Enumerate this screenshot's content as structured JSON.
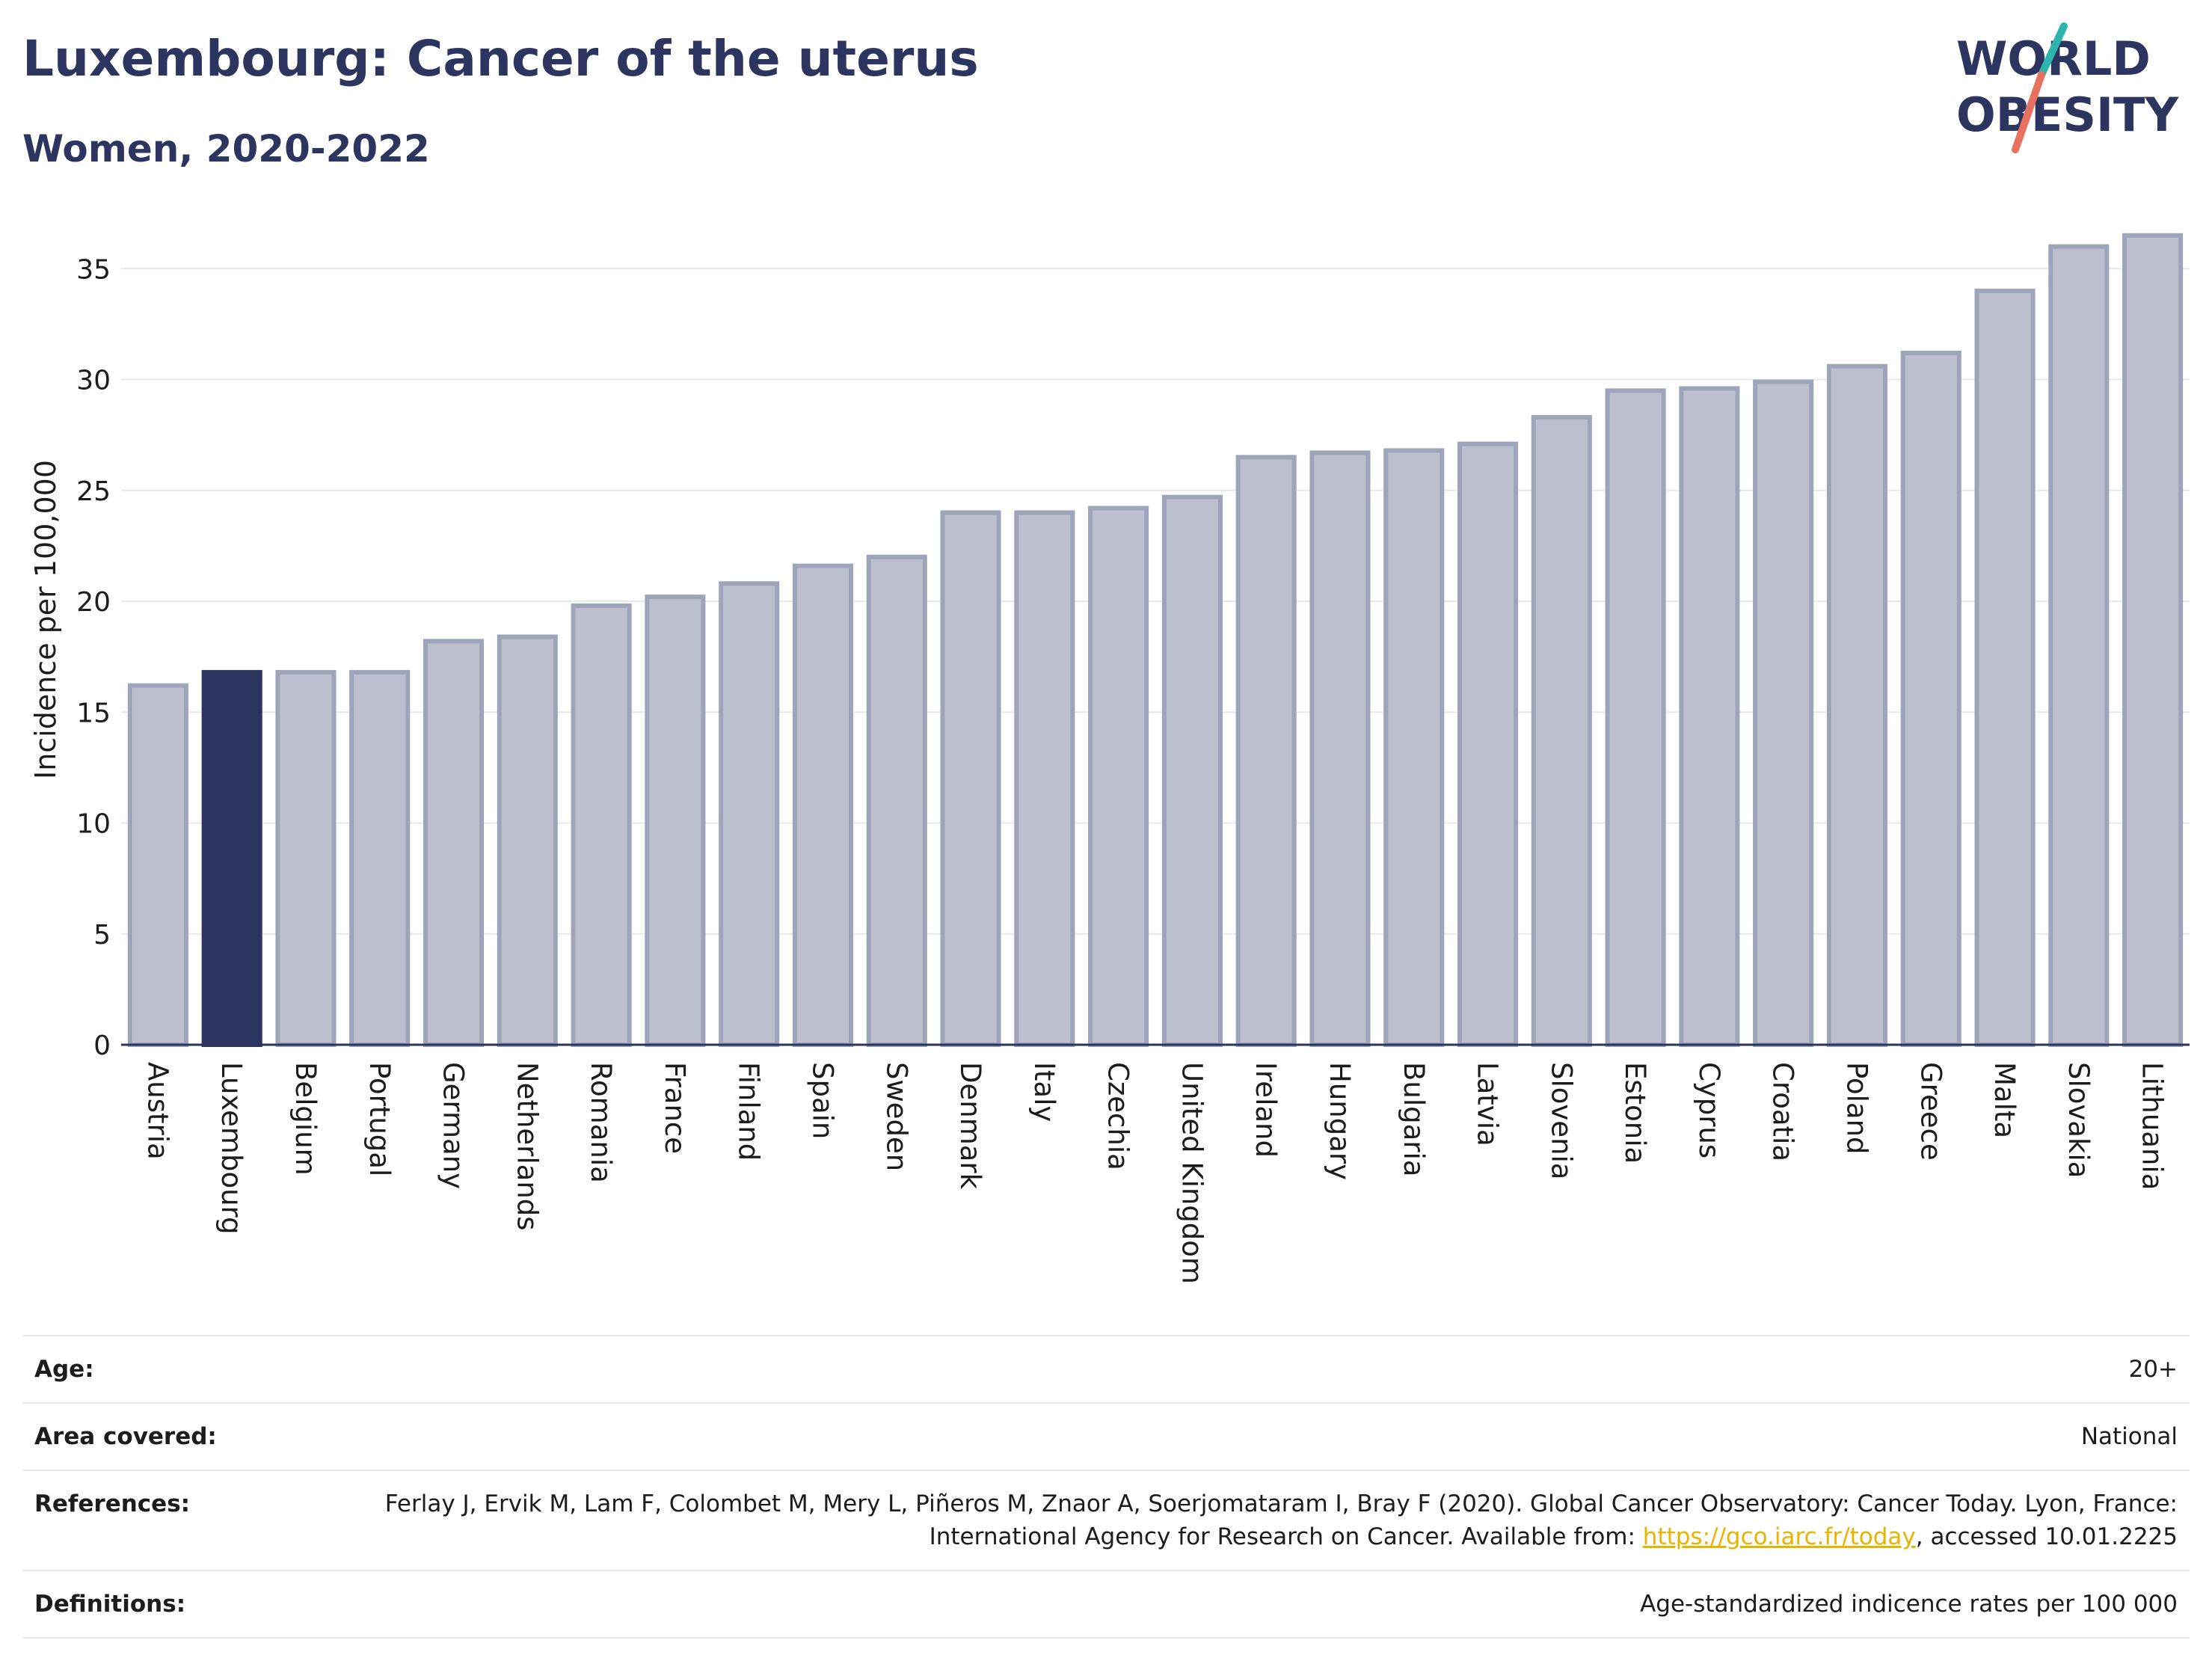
{
  "header": {
    "title": "Luxembourg: Cancer of the uterus",
    "subtitle": "Women, 2020-2022",
    "logo": {
      "line1": "WORLD",
      "line2": "OBESITY"
    }
  },
  "chart_data": {
    "type": "bar",
    "ylabel": "Incidence per 100,000",
    "xlabel": "",
    "ylim": [
      0,
      37
    ],
    "yticks": [
      0,
      5,
      10,
      15,
      20,
      25,
      30,
      35
    ],
    "grid": true,
    "highlight": "Luxembourg",
    "colors": {
      "bar": "#bcc0ce",
      "bar_border": "#9ea4ba",
      "highlight": "#2b3560",
      "grid": "#e6e8ee",
      "axis": "#2b3560"
    },
    "categories": [
      "Austria",
      "Luxembourg",
      "Belgium",
      "Portugal",
      "Germany",
      "Netherlands",
      "Romania",
      "France",
      "Finland",
      "Spain",
      "Sweden",
      "Denmark",
      "Italy",
      "Czechia",
      "United Kingdom",
      "Ireland",
      "Hungary",
      "Bulgaria",
      "Latvia",
      "Slovenia",
      "Estonia",
      "Cyprus",
      "Croatia",
      "Poland",
      "Greece",
      "Malta",
      "Slovakia",
      "Lithuania"
    ],
    "values": [
      16.2,
      16.8,
      16.8,
      16.8,
      18.2,
      18.4,
      19.8,
      20.2,
      20.8,
      21.6,
      22.0,
      24.0,
      24.0,
      24.2,
      24.7,
      26.5,
      26.7,
      26.8,
      27.1,
      28.3,
      29.5,
      29.6,
      29.9,
      30.6,
      31.2,
      34.0,
      36.0,
      36.5
    ]
  },
  "metadata": [
    {
      "key": "Age:",
      "value": "20+"
    },
    {
      "key": "Area covered:",
      "value": "National"
    },
    {
      "key": "References:",
      "value_before": "Ferlay J, Ervik M, Lam F, Colombet M, Mery L, Piñeros M, Znaor A, Soerjomataram I, Bray F (2020). Global Cancer Observatory: Cancer Today. Lyon, France: International Agency for Research on Cancer. Available from: ",
      "link": "https://gco.iarc.fr/today",
      "value_after": ", accessed 10.01.2225"
    },
    {
      "key": "Definitions:",
      "value": "Age-standardized indicence rates per 100 000"
    }
  ]
}
